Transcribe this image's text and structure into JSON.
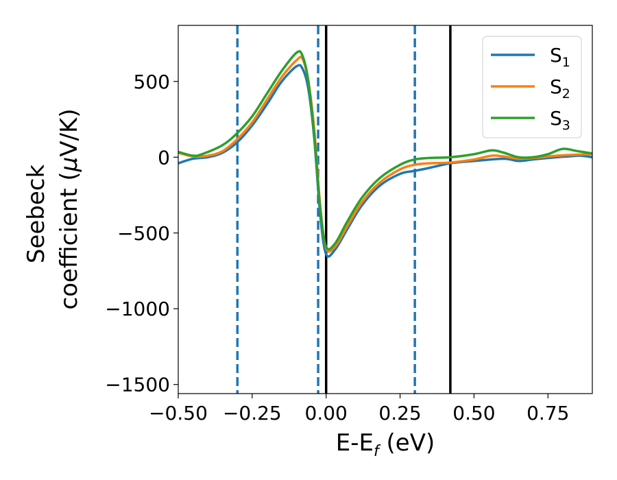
{
  "chart_data": {
    "type": "line",
    "title": "",
    "xlabel": {
      "main": "E-E",
      "sub": "f",
      "unit": " (eV)"
    },
    "ylabel": {
      "line1": "Seebeck",
      "line2_pre": "coefficient  (",
      "mu": "μ",
      "line2_post": "V/K)"
    },
    "xlim": [
      -0.5,
      0.9
    ],
    "ylim": [
      -1560,
      870
    ],
    "x_ticks": [
      -0.5,
      -0.25,
      0.0,
      0.25,
      0.5,
      0.75
    ],
    "x_tick_labels": [
      "−0.50",
      "−0.25",
      "0.00",
      "0.25",
      "0.50",
      "0.75"
    ],
    "y_ticks": [
      500,
      0,
      -500,
      -1000,
      -1500
    ],
    "y_tick_labels": [
      "500",
      "0",
      "−500",
      "−1000",
      "−1500"
    ],
    "grid": false,
    "legend_placement": "top-right",
    "series": [
      {
        "name": "S",
        "sub": "1",
        "color": "#1f77b4",
        "points": [
          [
            -0.5,
            -40
          ],
          [
            -0.45,
            -10
          ],
          [
            -0.4,
            0
          ],
          [
            -0.35,
            30
          ],
          [
            -0.3,
            100
          ],
          [
            -0.25,
            210
          ],
          [
            -0.2,
            350
          ],
          [
            -0.15,
            500
          ],
          [
            -0.1,
            600
          ],
          [
            -0.08,
            585
          ],
          [
            -0.06,
            450
          ],
          [
            -0.04,
            120
          ],
          [
            -0.02,
            -380
          ],
          [
            0.0,
            -640
          ],
          [
            0.03,
            -610
          ],
          [
            0.07,
            -480
          ],
          [
            0.12,
            -320
          ],
          [
            0.18,
            -190
          ],
          [
            0.25,
            -110
          ],
          [
            0.3,
            -90
          ],
          [
            0.35,
            -70
          ],
          [
            0.42,
            -40
          ],
          [
            0.5,
            -25
          ],
          [
            0.6,
            -10
          ],
          [
            0.65,
            -25
          ],
          [
            0.7,
            -15
          ],
          [
            0.78,
            0
          ],
          [
            0.82,
            5
          ],
          [
            0.86,
            10
          ],
          [
            0.9,
            0
          ]
        ]
      },
      {
        "name": "S",
        "sub": "2",
        "color": "#ff7f0e",
        "points": [
          [
            -0.5,
            30
          ],
          [
            -0.45,
            5
          ],
          [
            -0.4,
            10
          ],
          [
            -0.35,
            40
          ],
          [
            -0.3,
            120
          ],
          [
            -0.25,
            230
          ],
          [
            -0.2,
            380
          ],
          [
            -0.15,
            530
          ],
          [
            -0.1,
            640
          ],
          [
            -0.08,
            650
          ],
          [
            -0.06,
            500
          ],
          [
            -0.04,
            180
          ],
          [
            -0.02,
            -320
          ],
          [
            0.0,
            -600
          ],
          [
            0.03,
            -590
          ],
          [
            0.07,
            -460
          ],
          [
            0.12,
            -300
          ],
          [
            0.18,
            -170
          ],
          [
            0.25,
            -80
          ],
          [
            0.3,
            -50
          ],
          [
            0.35,
            -40
          ],
          [
            0.42,
            -35
          ],
          [
            0.5,
            -15
          ],
          [
            0.56,
            10
          ],
          [
            0.6,
            5
          ],
          [
            0.65,
            -10
          ],
          [
            0.7,
            -5
          ],
          [
            0.78,
            10
          ],
          [
            0.82,
            15
          ],
          [
            0.9,
            20
          ]
        ]
      },
      {
        "name": "S",
        "sub": "3",
        "color": "#2ca02c",
        "points": [
          [
            -0.5,
            35
          ],
          [
            -0.45,
            10
          ],
          [
            -0.42,
            20
          ],
          [
            -0.35,
            80
          ],
          [
            -0.3,
            160
          ],
          [
            -0.25,
            270
          ],
          [
            -0.2,
            420
          ],
          [
            -0.15,
            570
          ],
          [
            -0.1,
            690
          ],
          [
            -0.08,
            670
          ],
          [
            -0.06,
            500
          ],
          [
            -0.04,
            140
          ],
          [
            -0.02,
            -340
          ],
          [
            0.0,
            -590
          ],
          [
            0.03,
            -570
          ],
          [
            0.07,
            -430
          ],
          [
            0.12,
            -270
          ],
          [
            0.18,
            -140
          ],
          [
            0.25,
            -50
          ],
          [
            0.3,
            -15
          ],
          [
            0.35,
            -5
          ],
          [
            0.42,
            0
          ],
          [
            0.5,
            20
          ],
          [
            0.56,
            45
          ],
          [
            0.6,
            30
          ],
          [
            0.65,
            0
          ],
          [
            0.7,
            0
          ],
          [
            0.75,
            20
          ],
          [
            0.8,
            55
          ],
          [
            0.85,
            40
          ],
          [
            0.9,
            25
          ]
        ]
      }
    ],
    "vlines": [
      {
        "x": -0.3,
        "style": "dashed",
        "color": "#1f77b4"
      },
      {
        "x": -0.027,
        "style": "dashed",
        "color": "#1f77b4"
      },
      {
        "x": 0.3,
        "style": "dashed",
        "color": "#1f77b4"
      },
      {
        "x": 0.0,
        "style": "solid",
        "color": "#000000"
      },
      {
        "x": 0.42,
        "style": "solid",
        "color": "#000000"
      }
    ]
  }
}
